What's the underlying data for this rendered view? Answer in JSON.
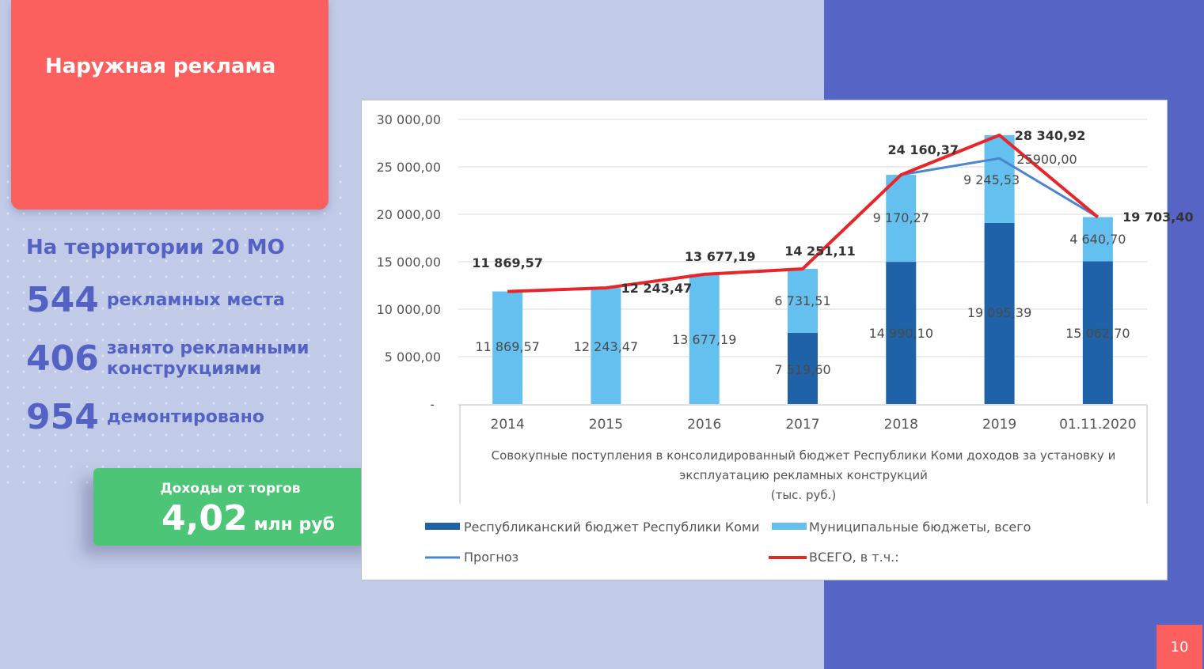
{
  "slide": {
    "title": "Наружная реклама",
    "territory": "На территории 20 МО",
    "stats": [
      {
        "num": "544",
        "label": "рекламных места"
      },
      {
        "num": "406",
        "label": "занято рекламными конструкциями"
      },
      {
        "num": "954",
        "label": "демонтировано"
      }
    ],
    "income": {
      "head": "Доходы от торгов",
      "value": "4,02",
      "unit": "млн руб"
    },
    "page_number": "10"
  },
  "colors": {
    "republic": "#1f62a8",
    "municipal": "#64c0ef",
    "forecast": "#4a86cf",
    "total": "#e8262a"
  },
  "chart_data": {
    "type": "bar",
    "stacked": true,
    "caption": [
      "Совокупные поступления в консолидированный бюджет Республики Коми доходов за установку и",
      "эксплуатацию рекламных конструкций",
      "(тыс. руб.)"
    ],
    "categories": [
      "2014",
      "2015",
      "2016",
      "2017",
      "2018",
      "2019",
      "01.11.2020"
    ],
    "ylim": [
      0,
      30000
    ],
    "yticks": [
      0,
      5000,
      10000,
      15000,
      20000,
      25000,
      30000
    ],
    "ytick_labels": [
      "-",
      "5 000,00",
      "10 000,00",
      "15 000,00",
      "20 000,00",
      "25 000,00",
      "30 000,00"
    ],
    "legend_position": "bottom",
    "series": [
      {
        "name": "Республиканский бюджет Республики Коми",
        "kind": "bar",
        "color_key": "republic",
        "values": [
          0,
          0,
          0,
          7519.6,
          14990.1,
          19095.39,
          15062.7
        ],
        "labels": [
          "",
          "",
          "",
          "7 519,60",
          "14 990,10",
          "19 095,39",
          "15 062,70"
        ]
      },
      {
        "name": "Муниципальные бюджеты, всего",
        "kind": "bar",
        "color_key": "municipal",
        "values": [
          11869.57,
          12243.47,
          13677.19,
          6731.51,
          9170.27,
          9245.53,
          4640.7
        ],
        "labels": [
          "11 869,57",
          "12 243,47",
          "13 677,19",
          "6 731,51",
          "9 170,27",
          "9 245,53",
          "4 640,70"
        ]
      },
      {
        "name": "Прогноз",
        "kind": "line",
        "color_key": "forecast",
        "values": [
          null,
          null,
          null,
          null,
          24160.37,
          25900.0,
          19703.4
        ],
        "labels": [
          "",
          "",
          "",
          "",
          "",
          "25900,00",
          ""
        ]
      },
      {
        "name": "ВСЕГО, в т.ч.:",
        "kind": "line",
        "color_key": "total",
        "values": [
          11869.57,
          12243.47,
          13677.19,
          14251.11,
          24160.37,
          28340.92,
          19703.4
        ],
        "labels": [
          "11 869,57",
          "12 243,47",
          "13 677,19",
          "14 251,11",
          "24 160,37",
          "28 340,92",
          "19 703,40"
        ]
      }
    ]
  }
}
